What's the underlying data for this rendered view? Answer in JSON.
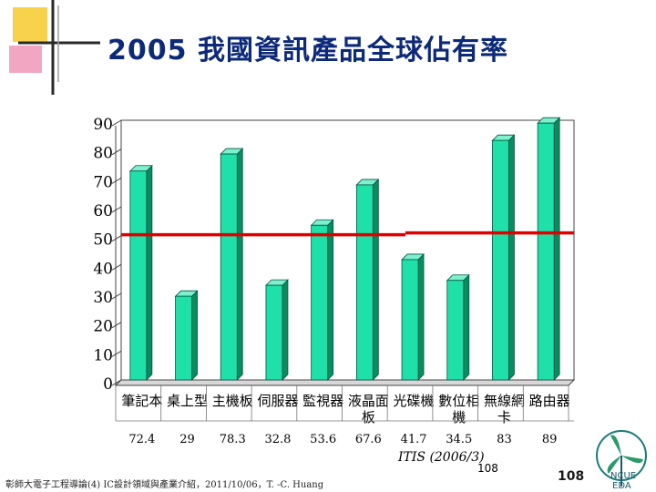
{
  "title": "2005 我國資訊產品全球佔有率",
  "chart_data": {
    "type": "bar",
    "categories": [
      [
        "筆記本"
      ],
      [
        "桌上型"
      ],
      [
        "主機板"
      ],
      [
        "伺服器"
      ],
      [
        "監視器"
      ],
      [
        "液晶面",
        "板"
      ],
      [
        "光碟機"
      ],
      [
        "數位相",
        "機"
      ],
      [
        "無線網",
        "卡"
      ],
      [
        "路由器"
      ]
    ],
    "values": [
      72.4,
      29,
      78.3,
      32.8,
      53.6,
      67.6,
      41.7,
      34.5,
      83,
      89
    ],
    "value_labels": [
      "72.4",
      "29",
      "78.3",
      "32.8",
      "53.6",
      "67.6",
      "41.7",
      "34.5",
      "83",
      "89"
    ],
    "yticks": [
      "0",
      "10",
      "20",
      "30",
      "40",
      "50",
      "60",
      "70",
      "80",
      "90"
    ],
    "ylim": [
      0,
      90
    ],
    "reference_line": 50,
    "colors": {
      "bar_face": "#1fe0a8",
      "bar_side": "#0a8c5e",
      "bar_top": "#7ff0cc",
      "reference": "#e00000"
    }
  },
  "source_note": "ITIS (2006/3)",
  "page_number_small": "108",
  "footer_text": "彰師大電子工程導論(4) IC設計領域與產業介紹，2011/10/06，T. -C. Huang",
  "page_number": "108",
  "logo_text": [
    "NCUE",
    "EDA"
  ]
}
